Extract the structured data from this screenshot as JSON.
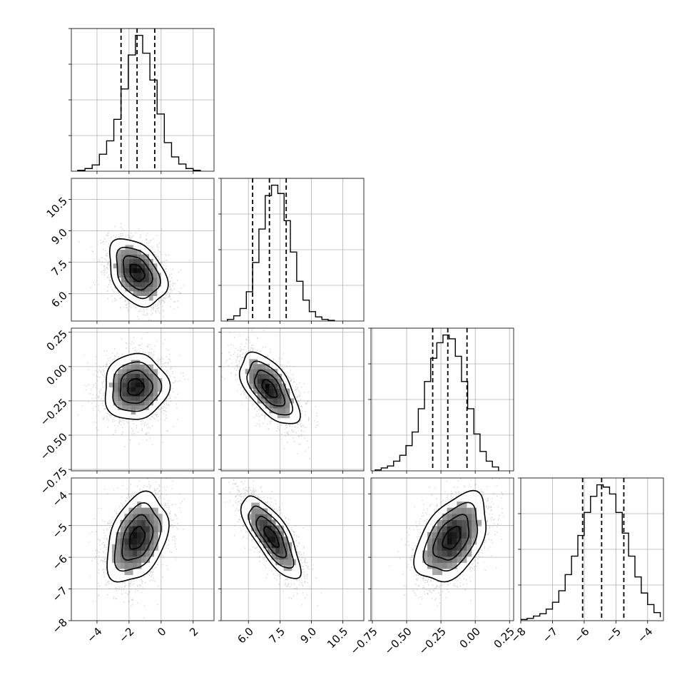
{
  "chart_data": {
    "type": "corner",
    "grid": true,
    "params": [
      {
        "range": [
          -5.6,
          3.3
        ],
        "ticks": [
          -4,
          -2,
          0,
          2
        ],
        "tick_labels": [
          "−4",
          "−2",
          "0",
          "2"
        ],
        "quantiles": [
          -2.5,
          -1.5,
          -0.4
        ],
        "hist": {
          "bin_edges": [
            -5.2,
            -4.75,
            -4.3,
            -3.85,
            -3.4,
            -2.95,
            -2.5,
            -2.05,
            -1.6,
            -1.15,
            -0.7,
            -0.25,
            0.2,
            0.65,
            1.1,
            1.55,
            2.0,
            2.45
          ],
          "counts": [
            0.5,
            1.5,
            3.5,
            9.5,
            17,
            29,
            46,
            65,
            76,
            66,
            51,
            32,
            16,
            8,
            4,
            1.5,
            0.5
          ]
        }
      },
      {
        "range": [
          4.7,
          11.5
        ],
        "ticks": [
          6.0,
          7.5,
          9.0,
          10.5
        ],
        "tick_labels": [
          "6.0",
          "7.5",
          "9.0",
          "10.5"
        ],
        "quantiles": [
          6.2,
          7.0,
          7.8
        ],
        "hist": {
          "bin_edges": [
            5.0,
            5.3,
            5.6,
            5.9,
            6.2,
            6.5,
            6.8,
            7.1,
            7.4,
            7.7,
            8.0,
            8.3,
            8.6,
            8.9,
            9.2,
            9.5,
            9.8,
            10.1
          ],
          "counts": [
            0.8,
            2.5,
            6,
            14,
            28,
            44,
            60,
            65,
            61,
            48,
            33,
            19,
            10,
            4.5,
            2,
            0.8,
            0.3
          ]
        }
      },
      {
        "range": [
          -0.76,
          0.28
        ],
        "ticks": [
          -0.75,
          -0.5,
          -0.25,
          0.0,
          0.25
        ],
        "tick_labels": [
          "−0.75",
          "−0.50",
          "−0.25",
          "0.00",
          "0.25"
        ],
        "quantiles": [
          -0.31,
          -0.2,
          -0.06
        ],
        "hist": {
          "bin_edges": [
            -0.73,
            -0.685,
            -0.64,
            -0.595,
            -0.55,
            -0.505,
            -0.46,
            -0.415,
            -0.37,
            -0.325,
            -0.28,
            -0.235,
            -0.19,
            -0.145,
            -0.1,
            -0.055,
            -0.01,
            0.035,
            0.08,
            0.125,
            0.17
          ],
          "counts": [
            0.5,
            1.5,
            2.5,
            5,
            8,
            13,
            20,
            32,
            46,
            58,
            66,
            70,
            68,
            59,
            46,
            32,
            19,
            10,
            5,
            2
          ]
        }
      },
      {
        "range": [
          -8.0,
          -3.5
        ],
        "ticks": [
          -8,
          -7,
          -6,
          -5,
          -4
        ],
        "tick_labels": [
          "−8",
          "−7",
          "−6",
          "−5",
          "−4"
        ],
        "quantiles": [
          -6.05,
          -5.45,
          -4.75
        ],
        "hist": {
          "bin_edges": [
            -8.0,
            -7.8,
            -7.6,
            -7.4,
            -7.2,
            -7.0,
            -6.8,
            -6.6,
            -6.4,
            -6.2,
            -6.0,
            -5.8,
            -5.6,
            -5.4,
            -5.2,
            -5.0,
            -4.8,
            -4.6,
            -4.4,
            -4.2,
            -4.0,
            -3.8,
            -3.6
          ],
          "counts": [
            0.5,
            1,
            2,
            3,
            5,
            8,
            13,
            20,
            28,
            37,
            47,
            54,
            59,
            58,
            55,
            47,
            38,
            28,
            19,
            12,
            7,
            3.5,
            1.5
          ]
        }
      }
    ],
    "pairs": [
      {
        "row": 1,
        "col": 0,
        "mean": [
          -1.5,
          7.0
        ],
        "sd": [
          0.9,
          0.8
        ],
        "rho": -0.35
      },
      {
        "row": 2,
        "col": 0,
        "mean": [
          -1.6,
          -0.15
        ],
        "sd": [
          1.0,
          0.12
        ],
        "rho": 0.05
      },
      {
        "row": 2,
        "col": 1,
        "mean": [
          7.0,
          -0.16
        ],
        "sd": [
          0.7,
          0.13
        ],
        "rho": -0.6
      },
      {
        "row": 3,
        "col": 0,
        "mean": [
          -1.5,
          -5.4
        ],
        "sd": [
          0.95,
          0.7
        ],
        "rho": 0.35
      },
      {
        "row": 3,
        "col": 1,
        "mean": [
          7.1,
          -5.35
        ],
        "sd": [
          0.7,
          0.65
        ],
        "rho": -0.75
      },
      {
        "row": 3,
        "col": 2,
        "mean": [
          -0.17,
          -5.4
        ],
        "sd": [
          0.13,
          0.7
        ],
        "rho": 0.45
      }
    ]
  }
}
